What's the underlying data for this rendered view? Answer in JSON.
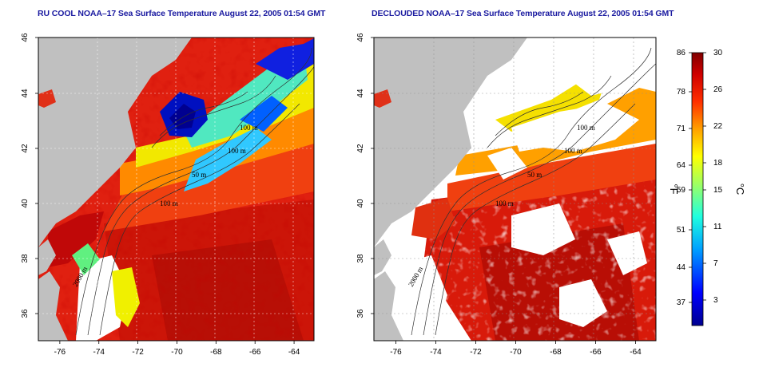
{
  "titles": {
    "left": "RU COOL NOAA–17 Sea Surface Temperature August 22, 2005 01:54 GMT",
    "right": "DECLOUDED NOAA–17 Sea Surface Temperature August 22, 2005 01:54 GMT"
  },
  "axes": {
    "lon_ticks": [
      "-76",
      "-74",
      "-72",
      "-70",
      "-68",
      "-66",
      "-64"
    ],
    "lat_ticks": [
      "46",
      "44",
      "42",
      "40",
      "38",
      "36"
    ]
  },
  "contour_labels": [
    "100 m",
    "100 m",
    "50 m",
    "100 m",
    "2000 m",
    "100 m"
  ],
  "colorbar": {
    "fahrenheit_ticks": [
      "86",
      "78",
      "71",
      "64",
      "59",
      "51",
      "44",
      "37"
    ],
    "celsius_ticks": [
      "30",
      "26",
      "22",
      "18",
      "15",
      "11",
      "7",
      "3"
    ],
    "fahrenheit_unit": "°F",
    "celsius_unit": "°C"
  },
  "colors": {
    "land": "#c0c0c0",
    "title": "#1a1aa0"
  }
}
